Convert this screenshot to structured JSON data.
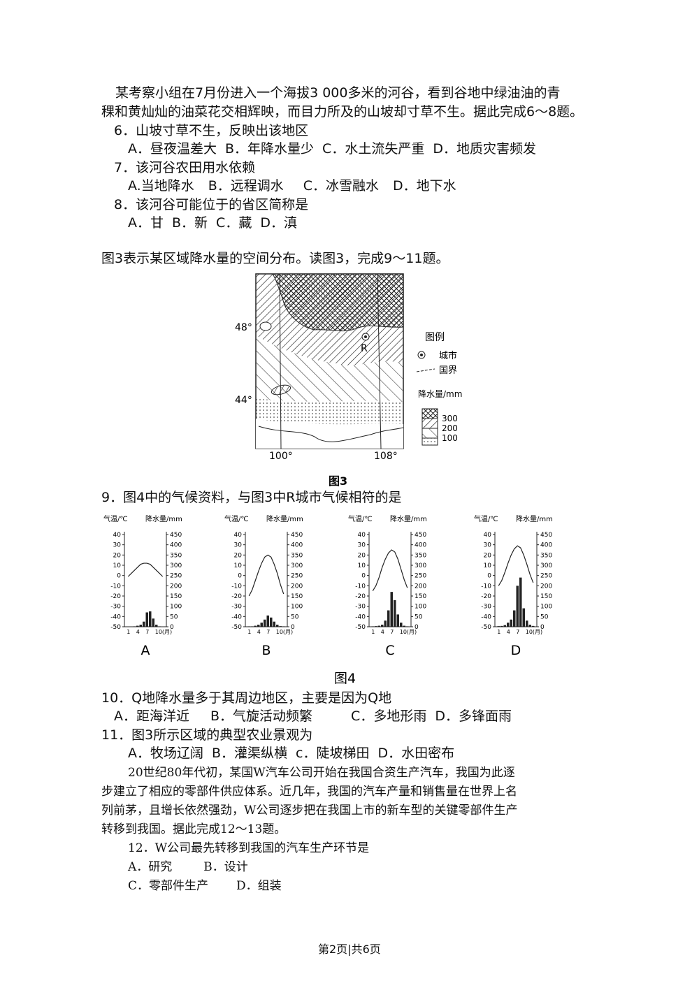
{
  "passage1": [
    "某考察小组在7月份进入一个海拔3 000多米的河谷，看到谷地中绿油油的青",
    "稞和黄灿灿的油菜花交相辉映，而目力所及的山坡却寸草不生。据此完成6～8题。"
  ],
  "questions": [
    {
      "stem": "6．山坡寸草不生，反映出该地区",
      "options": [
        "A．昼夜温差大",
        "B．年降水量少",
        "C．水土流失严重",
        "D．地质灾害频发"
      ]
    },
    {
      "stem": "7．该河谷农田用水依赖",
      "options": [
        "A.当地降水",
        "B．远程调水",
        "C．冰雪融水",
        "D．地下水"
      ]
    },
    {
      "stem": "8．该河谷可能位于的省区简称是",
      "options": [
        "A．甘",
        "B．新",
        "C．藏",
        "D．滇"
      ]
    }
  ],
  "intro3": "图3表示某区域降水量的空间分布。读图3，完成9～11题。",
  "figure3": {
    "lat_labels": [
      "48°",
      "44°"
    ],
    "lon_labels": [
      "100°",
      "108°"
    ],
    "point_label": "R",
    "legend_title": "图例",
    "legend_items": [
      "城市",
      "国界"
    ],
    "precip_title": "降水量/mm",
    "precip_levels": [
      300,
      200,
      100
    ],
    "caption": "图3"
  },
  "q9": "9．图4中的气候资料，与图3中R城市气候相符的是",
  "figure4": {
    "temp_label": "气温/℃",
    "precip_label": "降水量/mm",
    "temp_ticks": [
      40,
      30,
      20,
      10,
      0,
      -10,
      -20,
      -30,
      -40,
      -50
    ],
    "precip_ticks": [
      450,
      400,
      350,
      300,
      250,
      200,
      150,
      100,
      50,
      0
    ],
    "month_ticks": [
      1,
      4,
      7,
      {
        "value": 10,
        "label": "10(月)"
      }
    ],
    "charts": [
      {
        "label": "A",
        "temperature": [
          -1,
          2,
          5,
          8,
          11,
          12,
          12,
          11,
          8,
          5,
          2,
          -1
        ],
        "precipitation": [
          0,
          0,
          2,
          5,
          10,
          25,
          70,
          75,
          40,
          10,
          2,
          0
        ]
      },
      {
        "label": "B",
        "temperature": [
          -20,
          -14,
          -5,
          4,
          12,
          18,
          20,
          18,
          11,
          2,
          -9,
          -18
        ],
        "precipitation": [
          2,
          2,
          5,
          10,
          20,
          35,
          55,
          45,
          25,
          10,
          3,
          2
        ]
      },
      {
        "label": "C",
        "temperature": [
          -15,
          -10,
          -2,
          8,
          16,
          22,
          25,
          23,
          16,
          6,
          -4,
          -12
        ],
        "precipitation": [
          2,
          3,
          5,
          10,
          30,
          80,
          170,
          130,
          60,
          20,
          5,
          2
        ]
      },
      {
        "label": "D",
        "temperature": [
          -10,
          -5,
          3,
          12,
          20,
          26,
          29,
          27,
          20,
          11,
          1,
          -7
        ],
        "precipitation": [
          3,
          4,
          8,
          20,
          35,
          80,
          200,
          240,
          90,
          30,
          10,
          4
        ]
      }
    ],
    "caption": "图4"
  },
  "q10": {
    "stem": "10．Q地降水量多于其周边地区，主要是因为Q地",
    "options": [
      "A．距海洋近",
      "B．气旋活动频繁",
      "C．多地形雨",
      "D．多锋面雨"
    ]
  },
  "q11": {
    "stem": "11．图3所示区域的典型农业景观为",
    "options": [
      "A．牧场辽阔",
      "B．灌渠纵横",
      "c．陡坡梯田",
      "D．水田密布"
    ]
  },
  "passage2": [
    "20世纪80年代初，某国W汽车公司开始在我国合资生产汽车，我国为此逐",
    "步建立了相应的零部件供应体系。近几年，我国的汽车产量和销售量在世界上名",
    "列前茅，且增长依然强劲，W公司逐步把在我国上市的新车型的关键零部件生产",
    "转移到我国。据此完成12～13题。"
  ],
  "q12": {
    "stem": "12．W公司最先转移到我国的汽车生产环节是",
    "options": [
      "A．研究",
      "B．设计",
      "C．零部件生产",
      "D．组装"
    ]
  },
  "footer": "第2页|共6页"
}
